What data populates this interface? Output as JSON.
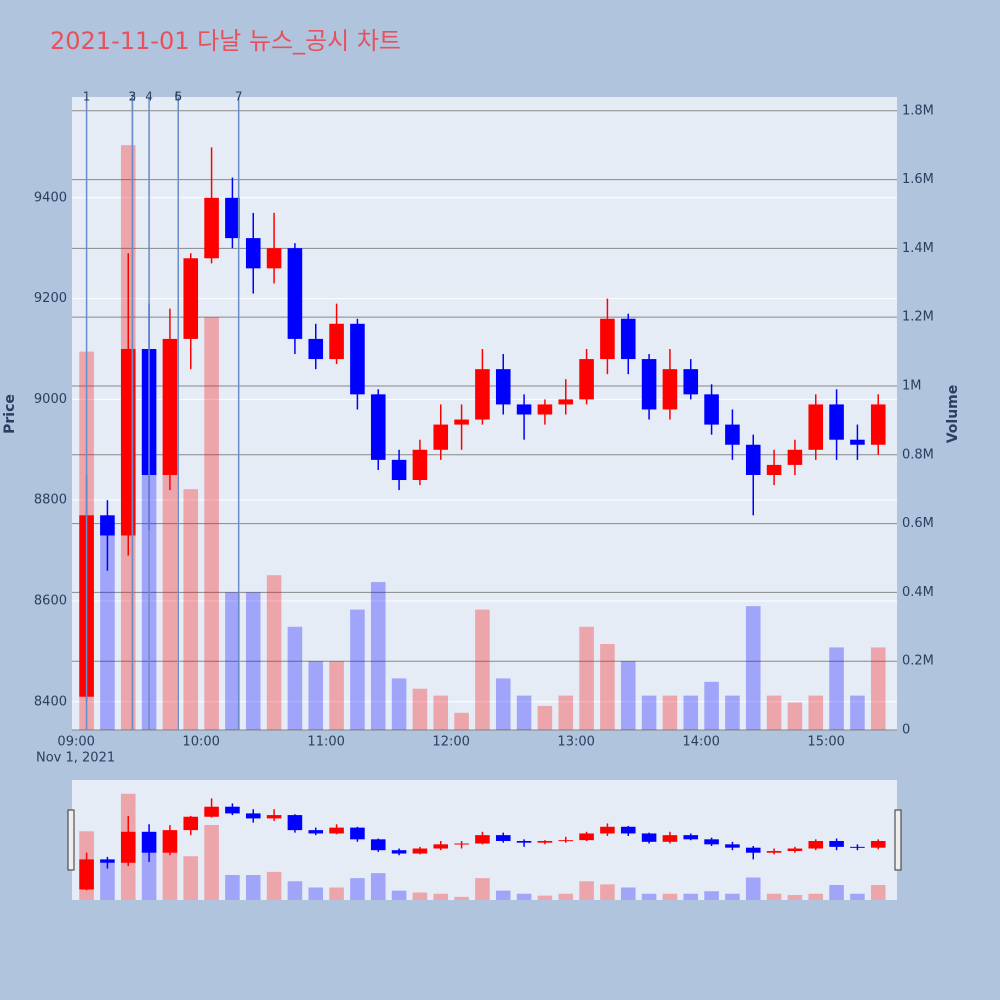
{
  "chart_data": {
    "type": "candlestick",
    "title": "2021-11-01 다날 뉴스_공시 차트",
    "x": [
      "2021-11-01 09:05",
      "2021-11-01 09:15",
      "2021-11-01 09:25",
      "2021-11-01 09:35",
      "2021-11-01 09:45",
      "2021-11-01 09:55",
      "2021-11-01 10:05",
      "2021-11-01 10:15",
      "2021-11-01 10:25",
      "2021-11-01 10:35",
      "2021-11-01 10:45",
      "2021-11-01 10:55",
      "2021-11-01 11:05",
      "2021-11-01 11:15",
      "2021-11-01 11:25",
      "2021-11-01 11:35",
      "2021-11-01 11:45",
      "2021-11-01 11:55",
      "2021-11-01 12:05",
      "2021-11-01 12:15",
      "2021-11-01 12:25",
      "2021-11-01 12:35",
      "2021-11-01 12:45",
      "2021-11-01 12:55",
      "2021-11-01 13:05",
      "2021-11-01 13:15",
      "2021-11-01 13:25",
      "2021-11-01 13:35",
      "2021-11-01 13:45",
      "2021-11-01 13:55",
      "2021-11-01 14:05",
      "2021-11-01 14:15",
      "2021-11-01 14:25",
      "2021-11-01 14:35",
      "2021-11-01 14:45",
      "2021-11-01 14:55",
      "2021-11-01 15:05",
      "2021-11-01 15:15",
      "2021-11-01 15:25"
    ],
    "open": [
      8410,
      8770,
      8730,
      9100,
      8850,
      9120,
      9280,
      9400,
      9320,
      9260,
      9300,
      9120,
      9080,
      9150,
      9010,
      8880,
      8840,
      8900,
      8950,
      8960,
      9060,
      8990,
      8970,
      8990,
      9000,
      9080,
      9160,
      9080,
      8980,
      9060,
      9010,
      8950,
      8910,
      8850,
      8870,
      8900,
      8990,
      8920,
      8910
    ],
    "high": [
      8850,
      8800,
      9290,
      9190,
      9180,
      9290,
      9500,
      9440,
      9370,
      9370,
      9310,
      9150,
      9190,
      9160,
      9020,
      8900,
      8920,
      8990,
      8990,
      9100,
      9090,
      9010,
      9000,
      9040,
      9100,
      9200,
      9170,
      9090,
      9100,
      9080,
      9030,
      8980,
      8930,
      8900,
      8920,
      9010,
      9020,
      8950,
      9010
    ],
    "low": [
      8400,
      8660,
      8690,
      8740,
      8820,
      9060,
      9270,
      9300,
      9210,
      9230,
      9090,
      9060,
      9070,
      8980,
      8860,
      8820,
      8830,
      8880,
      8900,
      8950,
      8970,
      8920,
      8950,
      8970,
      8990,
      9050,
      9050,
      8960,
      8960,
      9000,
      8930,
      8880,
      8770,
      8830,
      8850,
      8880,
      8880,
      8880,
      8890
    ],
    "close": [
      8770,
      8730,
      9100,
      8850,
      9120,
      9280,
      9400,
      9320,
      9260,
      9300,
      9120,
      9080,
      9150,
      9010,
      8880,
      8840,
      8900,
      8950,
      8960,
      9060,
      8990,
      8970,
      8990,
      9000,
      9080,
      9160,
      9080,
      8980,
      9060,
      9010,
      8950,
      8910,
      8850,
      8870,
      8900,
      8990,
      8920,
      8910,
      8990
    ],
    "volume": [
      1100000,
      600000,
      1700000,
      800000,
      800000,
      700000,
      1200000,
      400000,
      400000,
      450000,
      300000,
      200000,
      200000,
      350000,
      430000,
      150000,
      120000,
      100000,
      50000,
      350000,
      150000,
      100000,
      70000,
      100000,
      300000,
      250000,
      200000,
      100000,
      100000,
      100000,
      140000,
      100000,
      360000,
      100000,
      80000,
      100000,
      240000,
      100000,
      240000
    ],
    "increasing_color": "#ff0000",
    "decreasing_color": "#0000ff",
    "xlim": [
      "2021-11-01 08:58",
      "2021-11-01 15:34"
    ],
    "xticks": [
      {
        "value": "2021-11-01 09:00",
        "label": "09:00"
      },
      {
        "value": "2021-11-01 10:00",
        "label": "10:00"
      },
      {
        "value": "2021-11-01 11:00",
        "label": "11:00"
      },
      {
        "value": "2021-11-01 12:00",
        "label": "12:00"
      },
      {
        "value": "2021-11-01 13:00",
        "label": "13:00"
      },
      {
        "value": "2021-11-01 14:00",
        "label": "14:00"
      },
      {
        "value": "2021-11-01 15:00",
        "label": "15:00"
      }
    ],
    "x_sublabel": "Nov 1, 2021",
    "ylabel": "Price",
    "ylim": [
      8344,
      9600
    ],
    "yticks": [
      8400,
      8600,
      8800,
      9000,
      9200,
      9400
    ],
    "y2label": "Volume",
    "y2lim": [
      0,
      1840000
    ],
    "y2ticks": [
      0,
      {
        "value": 200000,
        "label": "0.2M"
      },
      {
        "value": 400000,
        "label": "0.4M"
      },
      {
        "value": 600000,
        "label": "0.6M"
      },
      {
        "value": 800000,
        "label": "0.8M"
      },
      {
        "value": 1000000,
        "label": "1M"
      },
      {
        "value": 1200000,
        "label": "1.2M"
      },
      {
        "value": 1400000,
        "label": "1.4M"
      },
      {
        "value": 1600000,
        "label": "1.6M"
      },
      {
        "value": 1800000,
        "label": "1.8M"
      }
    ],
    "events": [
      {
        "time": "2021-11-01 09:05",
        "label": "1"
      },
      {
        "time": "2021-11-01 09:27",
        "label": "2"
      },
      {
        "time": "2021-11-01 09:27",
        "label": "3"
      },
      {
        "time": "2021-11-01 09:35",
        "label": "4"
      },
      {
        "time": "2021-11-01 09:49",
        "label": "5"
      },
      {
        "time": "2021-11-01 09:49",
        "label": "6"
      },
      {
        "time": "2021-11-01 10:18",
        "label": "7"
      }
    ],
    "grid": true,
    "rangeslider": true
  }
}
